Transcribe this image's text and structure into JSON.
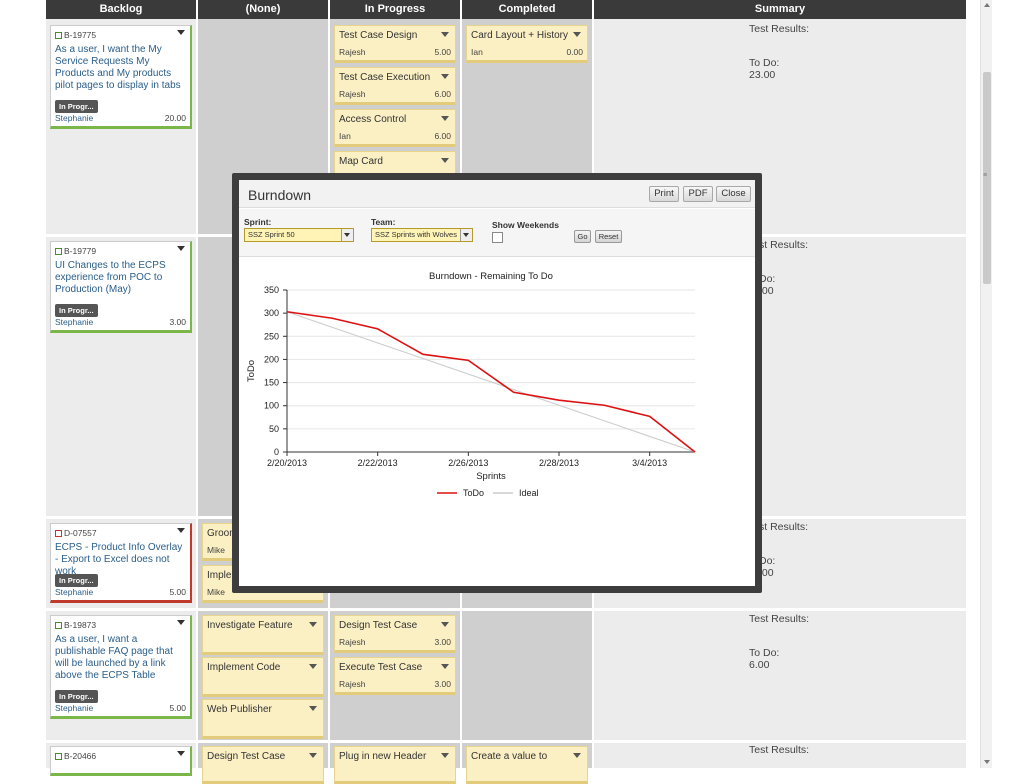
{
  "board": {
    "columns": [
      {
        "label": "Backlog"
      },
      {
        "label": "(None)"
      },
      {
        "label": "In Progress"
      },
      {
        "label": "Completed"
      },
      {
        "label": "Summary"
      }
    ],
    "stories": [
      {
        "id": "B-19775",
        "title": "As a user, I want the My Service Requests My Products and My products pilot pages to display in tabs",
        "state": "In Progr...",
        "owner": "Stephanie",
        "points": "20.00"
      },
      {
        "id": "B-19779",
        "title": "UI Changes to the ECPS experience from POC to Production (May)",
        "state": "In Progr...",
        "owner": "Stephanie",
        "points": "3.00"
      },
      {
        "id": "D-07557",
        "title": "ECPS - Product Info Overlay - Export to Excel does not work",
        "state": "In Progr...",
        "owner": "Stephanie",
        "points": "5.00"
      },
      {
        "id": "B-19873",
        "title": "As a user, I want a publishable FAQ page that will be launched by a link above the ECPS Table",
        "state": "In Progr...",
        "owner": "Stephanie",
        "points": "5.00"
      },
      {
        "id": "B-20466",
        "title": "",
        "state": "",
        "owner": "",
        "points": ""
      }
    ],
    "tasks_inprogress_row1": [
      {
        "name": "Test Case Design",
        "owner": "Rajesh",
        "hours": "5.00"
      },
      {
        "name": "Test Case Execution",
        "owner": "Rajesh",
        "hours": "6.00"
      },
      {
        "name": "Access Control",
        "owner": "Ian",
        "hours": "6.00"
      },
      {
        "name": "Map Card",
        "owner": "",
        "hours": ""
      }
    ],
    "tasks_completed_row1": [
      {
        "name": "Card Layout + History",
        "owner": "Ian",
        "hours": "0.00"
      }
    ],
    "tasks_none_row3": [
      {
        "name": "Groom",
        "owner": "Mike",
        "hours": ""
      },
      {
        "name": "Imple",
        "owner": "Mike",
        "hours": ""
      }
    ],
    "tasks_none_row4": [
      {
        "name": "Investigate Feature"
      },
      {
        "name": "Implement Code"
      },
      {
        "name": "Web Publisher"
      }
    ],
    "tasks_inprogress_row4": [
      {
        "name": "Design Test Case",
        "owner": "Rajesh",
        "hours": "3.00"
      },
      {
        "name": "Execute Test Case",
        "owner": "Rajesh",
        "hours": "3.00"
      }
    ],
    "tasks_row5": {
      "none": "Design Test Case",
      "inprogress": "Plug in new Header",
      "completed": "Create a value to"
    },
    "summaries": [
      {
        "results": "Test Results:",
        "todo_label": "To Do:",
        "todo": "23.00"
      },
      {
        "results": "st Results:",
        "todo_label": "Do:",
        "todo": ".00"
      },
      {
        "results": "st Results:",
        "todo_label": "Do:",
        "todo": ".00"
      },
      {
        "results": "Test Results:",
        "todo_label": "To Do:",
        "todo": "6.00"
      },
      {
        "results": "Test Results:",
        "todo_label": "",
        "todo": ""
      }
    ]
  },
  "modal": {
    "title": "Burndown",
    "buttons": {
      "print": "Print",
      "pdf": "PDF",
      "close": "Close"
    },
    "filters": {
      "sprint_label": "Sprint:",
      "sprint_value": "SSZ Sprint 50",
      "team_label": "Team:",
      "team_value": "SSZ Sprints with Wolves",
      "weekends_label": "Show Weekends",
      "go": "Go",
      "reset": "Reset"
    }
  },
  "chart_data": {
    "type": "line",
    "title": "Burndown - Remaining To Do",
    "xlabel": "Sprints",
    "ylabel": "ToDo",
    "x_ticks": [
      "2/20/2013",
      "2/22/2013",
      "2/26/2013",
      "2/28/2013",
      "3/4/2013"
    ],
    "x_index_range": [
      0,
      18
    ],
    "x_tick_index": [
      0,
      4,
      8,
      12,
      16
    ],
    "ylim": [
      0,
      350
    ],
    "y_ticks": [
      0,
      50,
      100,
      150,
      200,
      250,
      300,
      350
    ],
    "grid": true,
    "legend": "bottom",
    "series": [
      {
        "name": "ToDo",
        "color": "#dd1111",
        "x": [
          0,
          2,
          4,
          6,
          8,
          10,
          12,
          14,
          16,
          18
        ],
        "values": [
          303,
          289,
          266,
          211,
          198,
          129,
          112,
          101,
          77,
          0
        ]
      },
      {
        "name": "Ideal",
        "color": "#cccccc",
        "x": [
          0,
          18
        ],
        "values": [
          303,
          0
        ]
      }
    ]
  }
}
